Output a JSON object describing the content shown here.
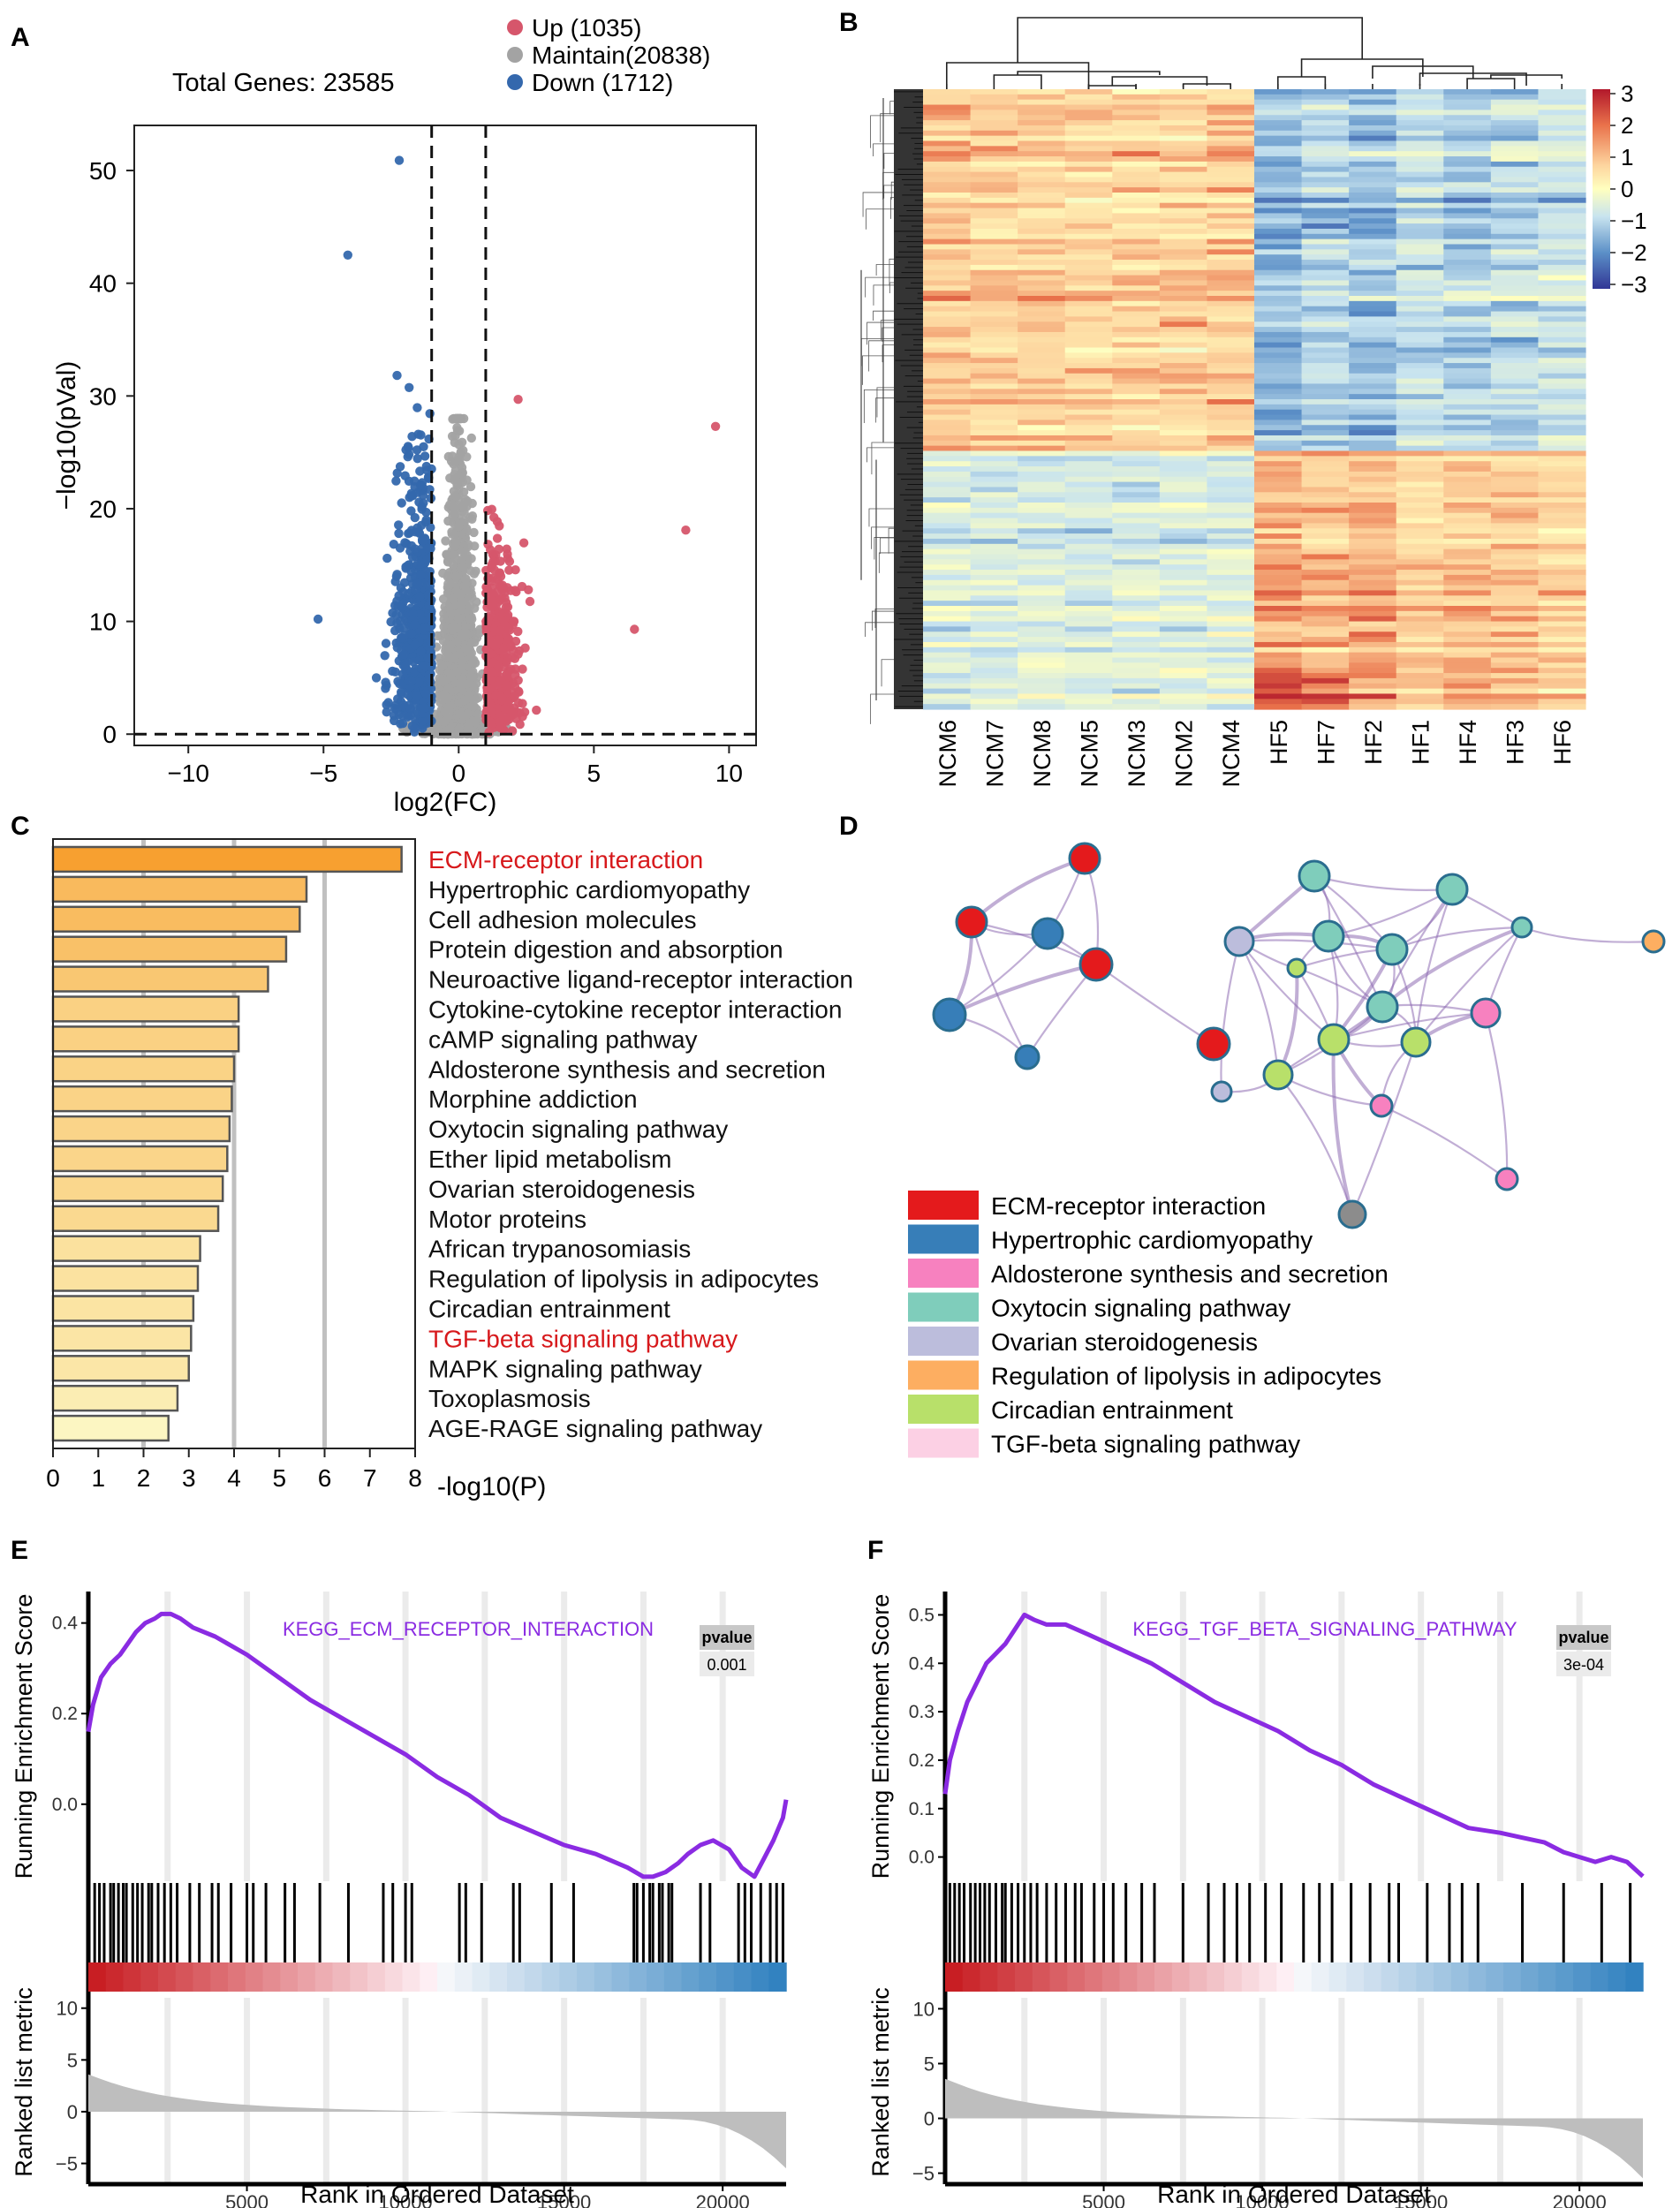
{
  "figure": {
    "panel_labels": [
      "A",
      "B",
      "C",
      "D",
      "E",
      "F"
    ]
  },
  "colors": {
    "up": "#d6566b",
    "maintain": "#a3a3a3",
    "down": "#3468ad",
    "gsea_line": "#8a2be2",
    "bar_high": "#f7a030",
    "bar_low": "#fcf6c2"
  },
  "chart_data": [
    {
      "panel": "A",
      "type": "scatter",
      "subtype": "volcano",
      "title": "Total Genes: 23585",
      "xlabel": "log2(FC)",
      "ylabel": "−log10(pVal)",
      "xlim": [
        -12,
        11
      ],
      "ylim": [
        -1,
        54
      ],
      "xticks": [
        -10,
        -5,
        0,
        5,
        10
      ],
      "yticks": [
        0,
        10,
        20,
        30,
        40,
        50
      ],
      "thresholds": {
        "log2fc": [
          -1,
          1
        ],
        "neglog10p": 0
      },
      "legend": [
        {
          "label": "Up (1035)",
          "key": "up"
        },
        {
          "label": "Maintain(20838)",
          "key": "maintain"
        },
        {
          "label": "Down (1712)",
          "key": "down"
        }
      ],
      "highlight_points": [
        {
          "x": -2.2,
          "y": 50.9,
          "group": "down"
        },
        {
          "x": -4.1,
          "y": 42.5,
          "group": "down"
        },
        {
          "x": -5.2,
          "y": 10.2,
          "group": "down"
        },
        {
          "x": 9.5,
          "y": 27.3,
          "group": "up"
        },
        {
          "x": 8.4,
          "y": 18.1,
          "group": "up"
        },
        {
          "x": 6.5,
          "y": 9.3,
          "group": "up"
        },
        {
          "x": 2.2,
          "y": 29.7,
          "group": "up"
        }
      ]
    },
    {
      "panel": "B",
      "type": "heatmap",
      "columns": [
        "NCM6",
        "NCM7",
        "NCM8",
        "NCM5",
        "NCM3",
        "NCM2",
        "NCM4",
        "HF5",
        "HF7",
        "HF2",
        "HF1",
        "HF4",
        "HF3",
        "HF6"
      ],
      "color_scale": {
        "min": -3,
        "max": 3,
        "ticks": [
          "3",
          "2",
          "1",
          "0",
          "−1",
          "−2",
          "−3"
        ]
      },
      "row_clusters": [
        {
          "name": "down_in_HF",
          "fraction_of_rows": 0.58
        },
        {
          "name": "up_in_HF",
          "fraction_of_rows": 0.42
        }
      ]
    },
    {
      "panel": "C",
      "type": "bar",
      "orientation": "horizontal",
      "xlabel": "-log10(P)",
      "xlim": [
        0,
        8
      ],
      "xticks": [
        0,
        1,
        2,
        3,
        4,
        5,
        6,
        7,
        8
      ],
      "gridlines": [
        2,
        4,
        6
      ],
      "categories": [
        "ECM-receptor interaction",
        "Hypertrophic cardiomyopathy",
        "Cell adhesion molecules",
        "Protein digestion and absorption",
        "Neuroactive ligand-receptor interaction",
        "Cytokine-cytokine receptor interaction",
        "cAMP signaling pathway",
        "Aldosterone synthesis and secretion",
        "Morphine addiction",
        "Oxytocin signaling pathway",
        "Ether lipid metabolism",
        "Ovarian steroidogenesis",
        "Motor proteins",
        "African trypanosomiasis",
        "Regulation of lipolysis in adipocytes",
        "Circadian entrainment",
        "TGF-beta signaling pathway",
        "MAPK signaling pathway",
        "Toxoplasmosis",
        "AGE-RAGE signaling pathway"
      ],
      "values": [
        7.7,
        5.6,
        5.45,
        5.15,
        4.75,
        4.1,
        4.1,
        4.0,
        3.95,
        3.9,
        3.85,
        3.75,
        3.65,
        3.25,
        3.2,
        3.1,
        3.05,
        3.0,
        2.75,
        2.55
      ],
      "highlighted": [
        "ECM-receptor interaction",
        "TGF-beta signaling pathway"
      ]
    },
    {
      "panel": "D",
      "type": "network",
      "legend": [
        {
          "label": "ECM-receptor interaction",
          "color": "#e41a1c"
        },
        {
          "label": "Hypertrophic cardiomyopathy",
          "color": "#377eb8"
        },
        {
          "label": "Aldosterone synthesis and secretion",
          "color": "#f781bf"
        },
        {
          "label": "Oxytocin signaling pathway",
          "color": "#7fcdbb"
        },
        {
          "label": "Ovarian steroidogenesis",
          "color": "#bcbddc"
        },
        {
          "label": "Regulation of lipolysis in adipocytes",
          "color": "#fdae61"
        },
        {
          "label": "Circadian entrainment",
          "color": "#b8e06a"
        },
        {
          "label": "TGF-beta signaling pathway",
          "color": "#fcd0e4"
        }
      ]
    },
    {
      "panel": "E",
      "type": "line",
      "subtype": "gsea",
      "title": "KEGG_ECM_RECEPTOR_INTERACTION",
      "pvalue_label": "pvalue",
      "pvalue": "0.001",
      "ylabel_top": "Running Enrichment Score",
      "ylabel_bottom": "Ranked list metric",
      "xlabel": "Rank in Ordered Dataset",
      "xlim": [
        0,
        22000
      ],
      "xticks": [
        5000,
        10000,
        15000,
        20000
      ],
      "ylim": [
        -0.17,
        0.45
      ],
      "yticks": [
        0.0,
        0.2,
        0.4
      ],
      "ytick_labels": [
        "0.0",
        "0.2",
        "0.4"
      ],
      "metric_ylim": [
        -7,
        11
      ],
      "metric_yticks": [
        10,
        5,
        0,
        -5
      ],
      "x": [
        0,
        150,
        400,
        700,
        1000,
        1300,
        1500,
        1800,
        2100,
        2300,
        2600,
        2900,
        3300,
        4000,
        5000,
        6000,
        7000,
        8000,
        9000,
        10000,
        11000,
        12000,
        13000,
        14000,
        15000,
        16000,
        17000,
        17500,
        17800,
        18200,
        18600,
        18900,
        19300,
        19700,
        20200,
        20600,
        21000,
        21300,
        21600,
        21900,
        22000
      ],
      "y": [
        0.16,
        0.22,
        0.28,
        0.31,
        0.33,
        0.36,
        0.38,
        0.4,
        0.41,
        0.42,
        0.42,
        0.41,
        0.39,
        0.37,
        0.33,
        0.28,
        0.23,
        0.19,
        0.15,
        0.11,
        0.06,
        0.02,
        -0.03,
        -0.06,
        -0.09,
        -0.11,
        -0.14,
        -0.16,
        -0.16,
        -0.15,
        -0.13,
        -0.11,
        -0.09,
        -0.08,
        -0.1,
        -0.14,
        -0.16,
        -0.12,
        -0.08,
        -0.03,
        0.01
      ],
      "hits": [
        200,
        350,
        500,
        700,
        800,
        950,
        1100,
        1200,
        1400,
        1550,
        1700,
        1900,
        2000,
        2200,
        2400,
        2600,
        2800,
        3200,
        3500,
        3900,
        4100,
        4500,
        5000,
        5200,
        5600,
        6200,
        6500,
        7300,
        8200,
        9300,
        9600,
        10000,
        10200,
        11700,
        11900,
        12400,
        13400,
        13600,
        14600,
        15300,
        17200,
        17300,
        17500,
        17700,
        17800,
        18000,
        18100,
        18300,
        18400,
        19300,
        19600,
        20500,
        20700,
        20900,
        21200,
        21500,
        21700,
        21900
      ]
    },
    {
      "panel": "F",
      "type": "line",
      "subtype": "gsea",
      "title": "KEGG_TGF_BETA_SIGNALING_PATHWAY",
      "pvalue_label": "pvalue",
      "pvalue": "3e-04",
      "ylabel_top": "Running Enrichment Score",
      "ylabel_bottom": "Ranked list metric",
      "xlabel": "Rank in Ordered Dataset",
      "xlim": [
        0,
        22000
      ],
      "xticks": [
        5000,
        10000,
        15000,
        20000
      ],
      "ylim": [
        -0.05,
        0.53
      ],
      "yticks": [
        0.0,
        0.1,
        0.2,
        0.3,
        0.4,
        0.5
      ],
      "ytick_labels": [
        "0.0",
        "0.1",
        "0.2",
        "0.3",
        "0.4",
        "0.5"
      ],
      "metric_ylim": [
        -6,
        11
      ],
      "metric_yticks": [
        10,
        5,
        0,
        -5
      ],
      "x": [
        0,
        150,
        400,
        700,
        1000,
        1300,
        1600,
        1900,
        2200,
        2500,
        2800,
        3200,
        3800,
        4500,
        5500,
        6500,
        7500,
        8500,
        9500,
        10500,
        11500,
        12500,
        13500,
        14500,
        15500,
        16500,
        17500,
        18200,
        18900,
        19500,
        20000,
        20500,
        21000,
        21500,
        22000
      ],
      "y": [
        0.13,
        0.2,
        0.26,
        0.32,
        0.36,
        0.4,
        0.42,
        0.44,
        0.47,
        0.5,
        0.49,
        0.48,
        0.48,
        0.46,
        0.43,
        0.4,
        0.36,
        0.32,
        0.29,
        0.26,
        0.22,
        0.19,
        0.15,
        0.12,
        0.09,
        0.06,
        0.05,
        0.04,
        0.03,
        0.01,
        0.0,
        -0.01,
        0.0,
        -0.01,
        -0.04
      ],
      "hits": [
        150,
        300,
        450,
        600,
        800,
        950,
        1100,
        1250,
        1400,
        1600,
        1800,
        1900,
        2100,
        2300,
        2500,
        2700,
        2900,
        3200,
        3500,
        3800,
        4100,
        4300,
        4700,
        5000,
        5300,
        5700,
        6200,
        6600,
        7500,
        8300,
        8800,
        9200,
        9600,
        10100,
        10600,
        11300,
        11800,
        12200,
        12800,
        13400,
        14000,
        14300,
        15200,
        15900,
        16300,
        16800,
        18200,
        19500,
        20700,
        21600
      ]
    }
  ]
}
